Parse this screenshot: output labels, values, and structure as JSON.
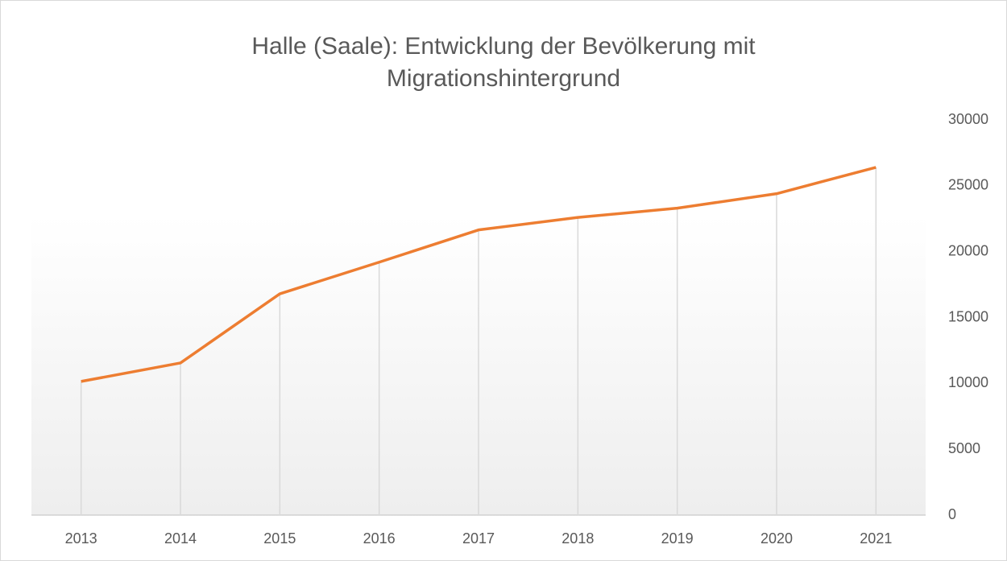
{
  "chart_data": {
    "type": "line",
    "title": "Halle (Saale): Entwicklung der Bevölkerung mit Migrationshintergrund",
    "categories": [
      "2013",
      "2014",
      "2015",
      "2016",
      "2017",
      "2018",
      "2019",
      "2020",
      "2021"
    ],
    "series": [
      {
        "name": "Bevölkerung mit Migrationshintergrund",
        "color": "#ed7d31",
        "values": [
          10150,
          11550,
          16800,
          19200,
          21650,
          22600,
          23300,
          24400,
          26400
        ]
      }
    ],
    "ylim": [
      0,
      30000
    ],
    "yticks": [
      0,
      5000,
      10000,
      15000,
      20000,
      25000,
      30000
    ],
    "y_axis_side": "right",
    "drop_lines": true,
    "grid": false,
    "legend": false
  }
}
